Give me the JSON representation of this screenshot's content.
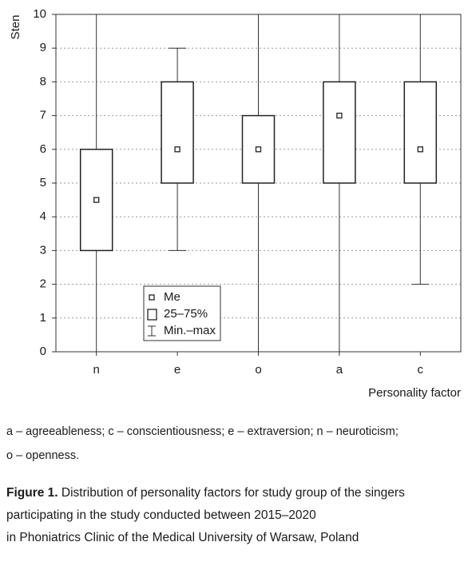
{
  "chart_data": {
    "type": "box",
    "y_label": "Sten",
    "x_label": "Personality factor",
    "categories": [
      "n",
      "e",
      "o",
      "a",
      "c"
    ],
    "min": [
      0,
      3,
      0,
      0,
      2
    ],
    "q1": [
      3,
      5,
      5,
      5,
      5
    ],
    "median": [
      4.5,
      6,
      6,
      7,
      6
    ],
    "q3": [
      6,
      8,
      7,
      8,
      8
    ],
    "max": [
      10,
      9,
      10,
      10,
      10
    ],
    "ylim": [
      0,
      10
    ],
    "yticks": [
      0,
      1,
      2,
      3,
      4,
      5,
      6,
      7,
      8,
      9,
      10
    ],
    "grid": true,
    "legend": [
      "Me",
      "25–75%",
      "Min.–max"
    ]
  },
  "footnote": [
    "a – agreeableness; c – conscientiousness; e – extraversion; n – neuroticism;",
    "o – openness."
  ],
  "caption": {
    "label": "Figure 1.",
    "lines": [
      "Distribution of personality factors for study group of the singers",
      "participating in the study conducted between 2015–2020",
      "in Phoniatrics Clinic of the Medical University of Warsaw, Poland"
    ]
  }
}
